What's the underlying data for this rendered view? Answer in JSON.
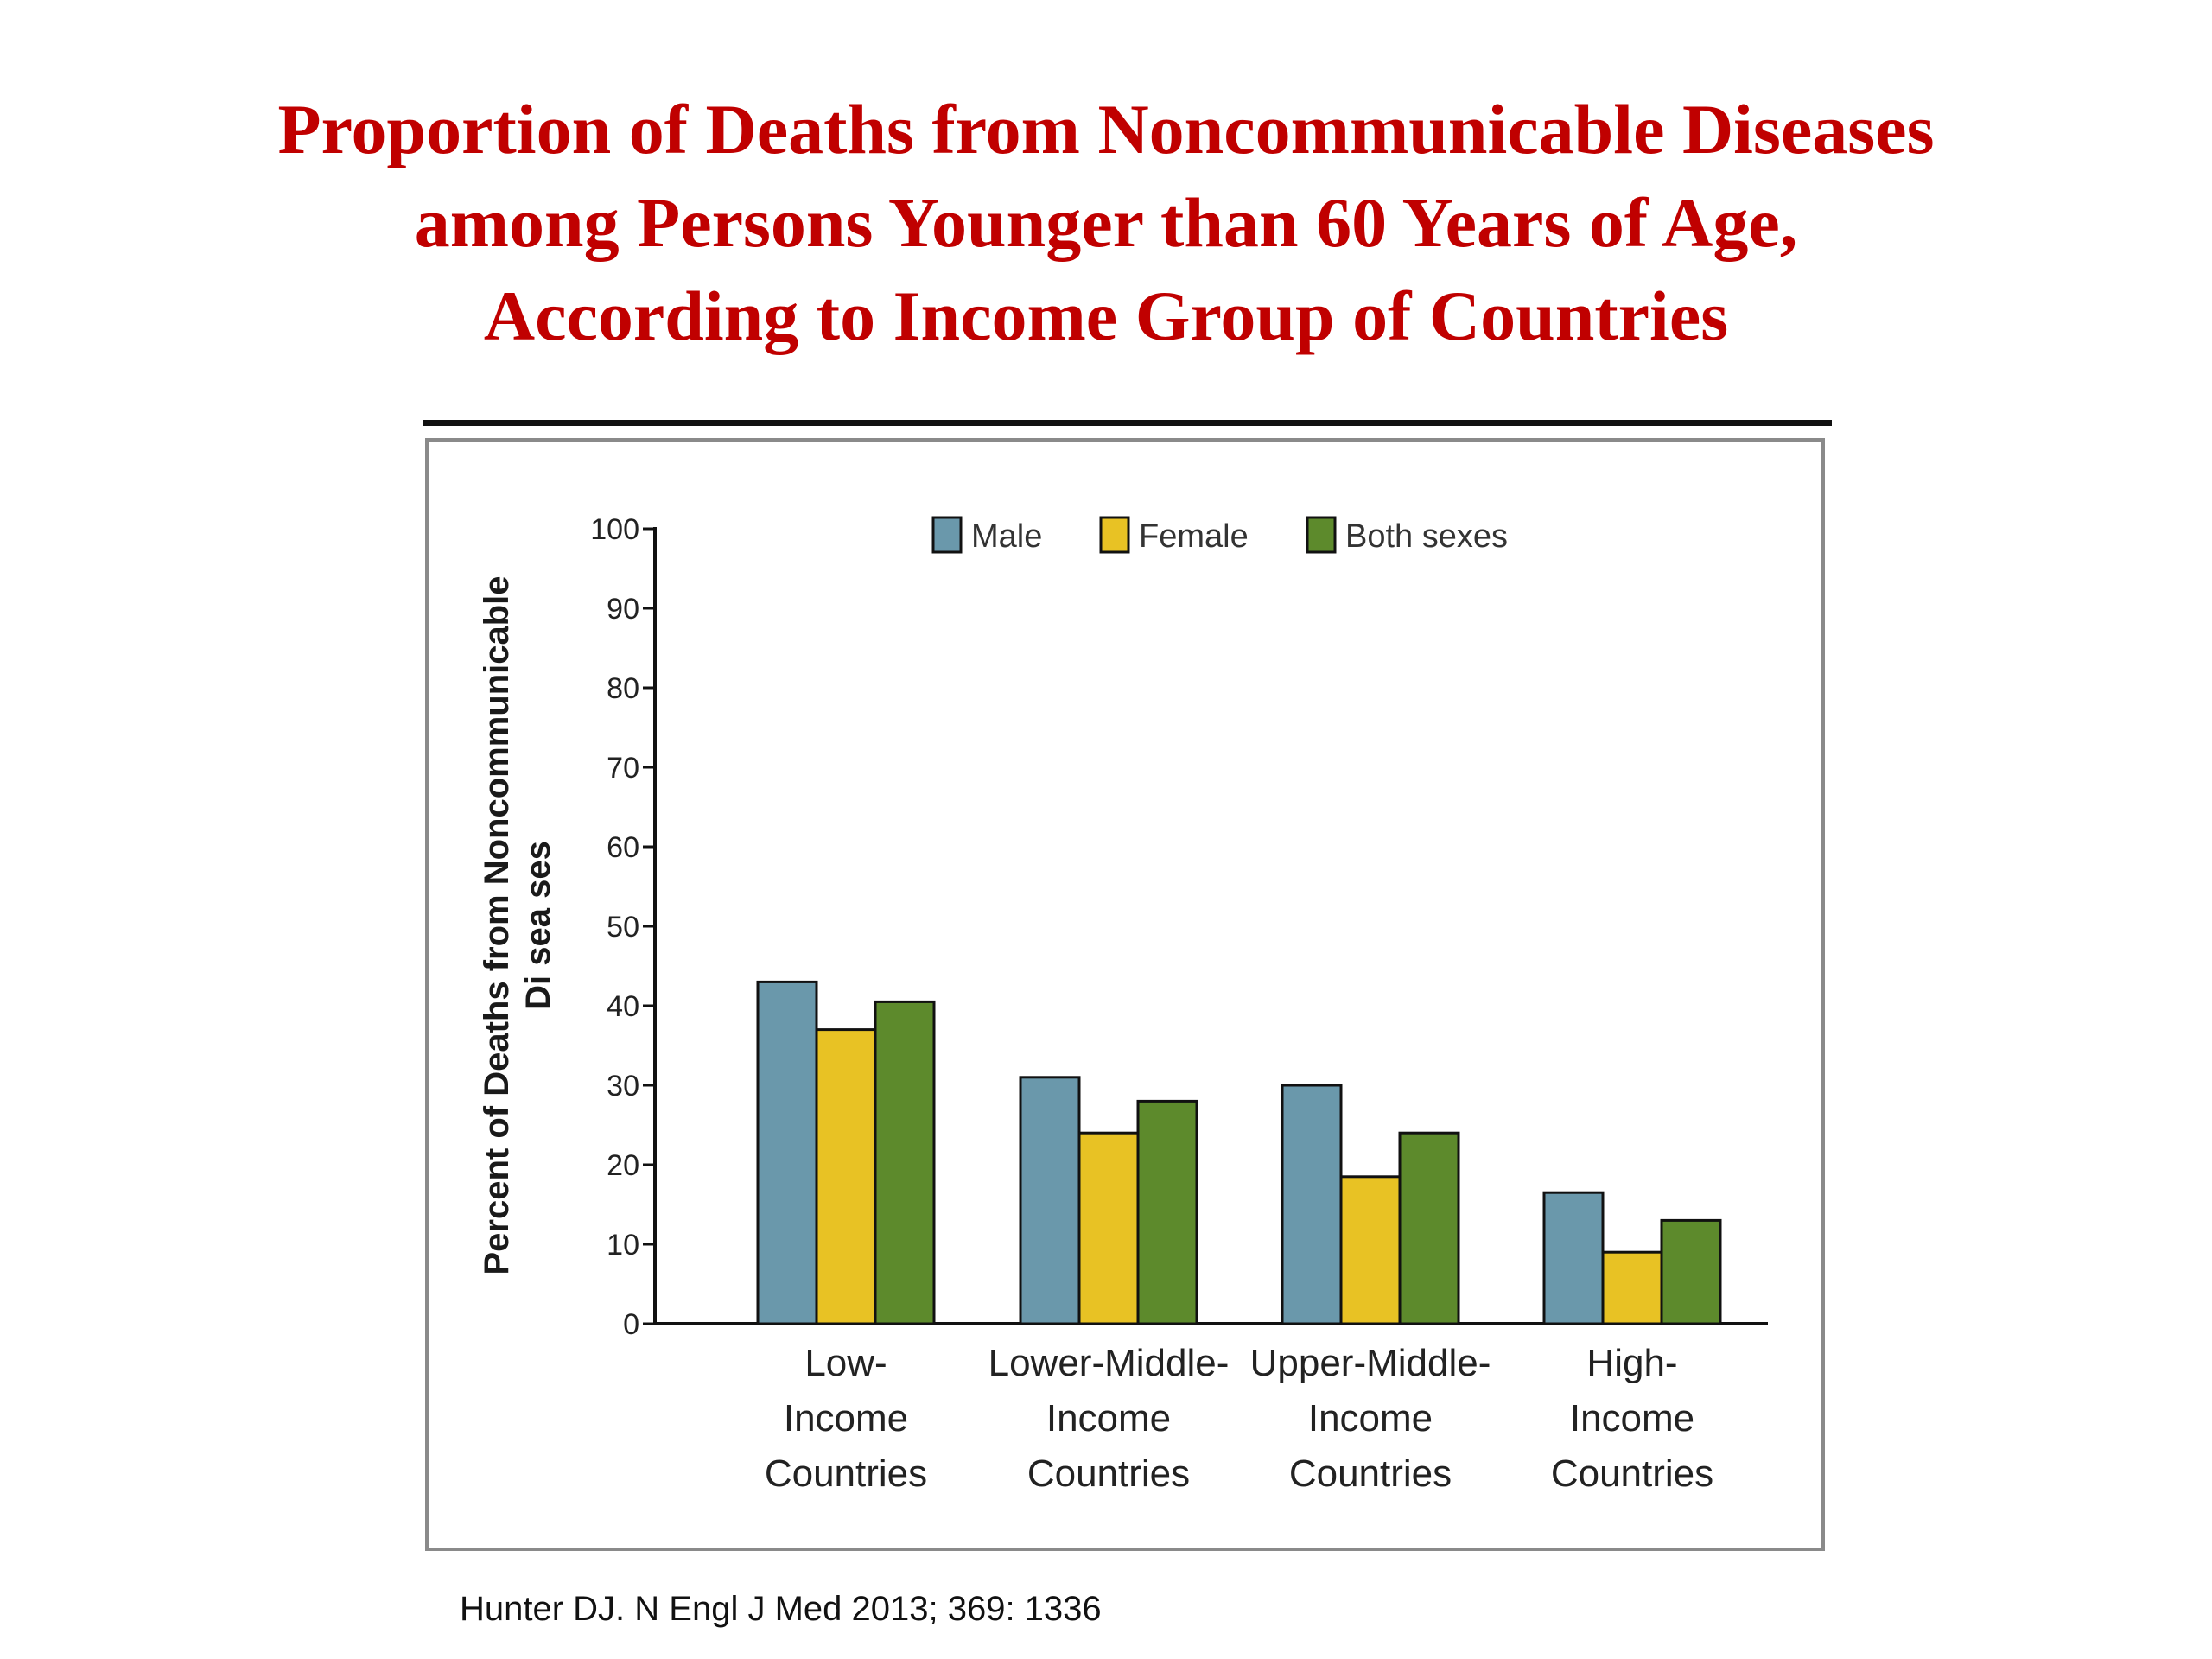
{
  "slide": {
    "title_lines": [
      "Proportion of Deaths from Noncommunicable Diseases",
      "among Persons Younger than 60 Years of Age,",
      "According to Income Group of Countries"
    ],
    "citation": "Hunter DJ. N Engl J Med 2013; 369: 1336"
  },
  "chart_data": {
    "type": "bar",
    "ylabel_lines": [
      "Percent of Deaths from Noncommunicable",
      "Di sea ses"
    ],
    "ylim": [
      0,
      100
    ],
    "yticks": [
      0,
      10,
      20,
      30,
      40,
      50,
      60,
      70,
      80,
      90,
      100
    ],
    "grid": false,
    "legend_position": "top",
    "categories": [
      [
        "Low-",
        "Income",
        "Countries"
      ],
      [
        "Lower-Middle-",
        "Income",
        "Countries"
      ],
      [
        "Upper-Middle-",
        "Income",
        "Countries"
      ],
      [
        "High-",
        "Income",
        "Countries"
      ]
    ],
    "series": [
      {
        "name": "Male",
        "color": "#6a98ab",
        "values": [
          43,
          31,
          30,
          16.5
        ]
      },
      {
        "name": "Female",
        "color": "#e8c224",
        "values": [
          37,
          24,
          18.5,
          9
        ]
      },
      {
        "name": "Both sexes",
        "color": "#5d8a2c",
        "values": [
          40.5,
          28,
          24,
          13
        ]
      }
    ]
  }
}
